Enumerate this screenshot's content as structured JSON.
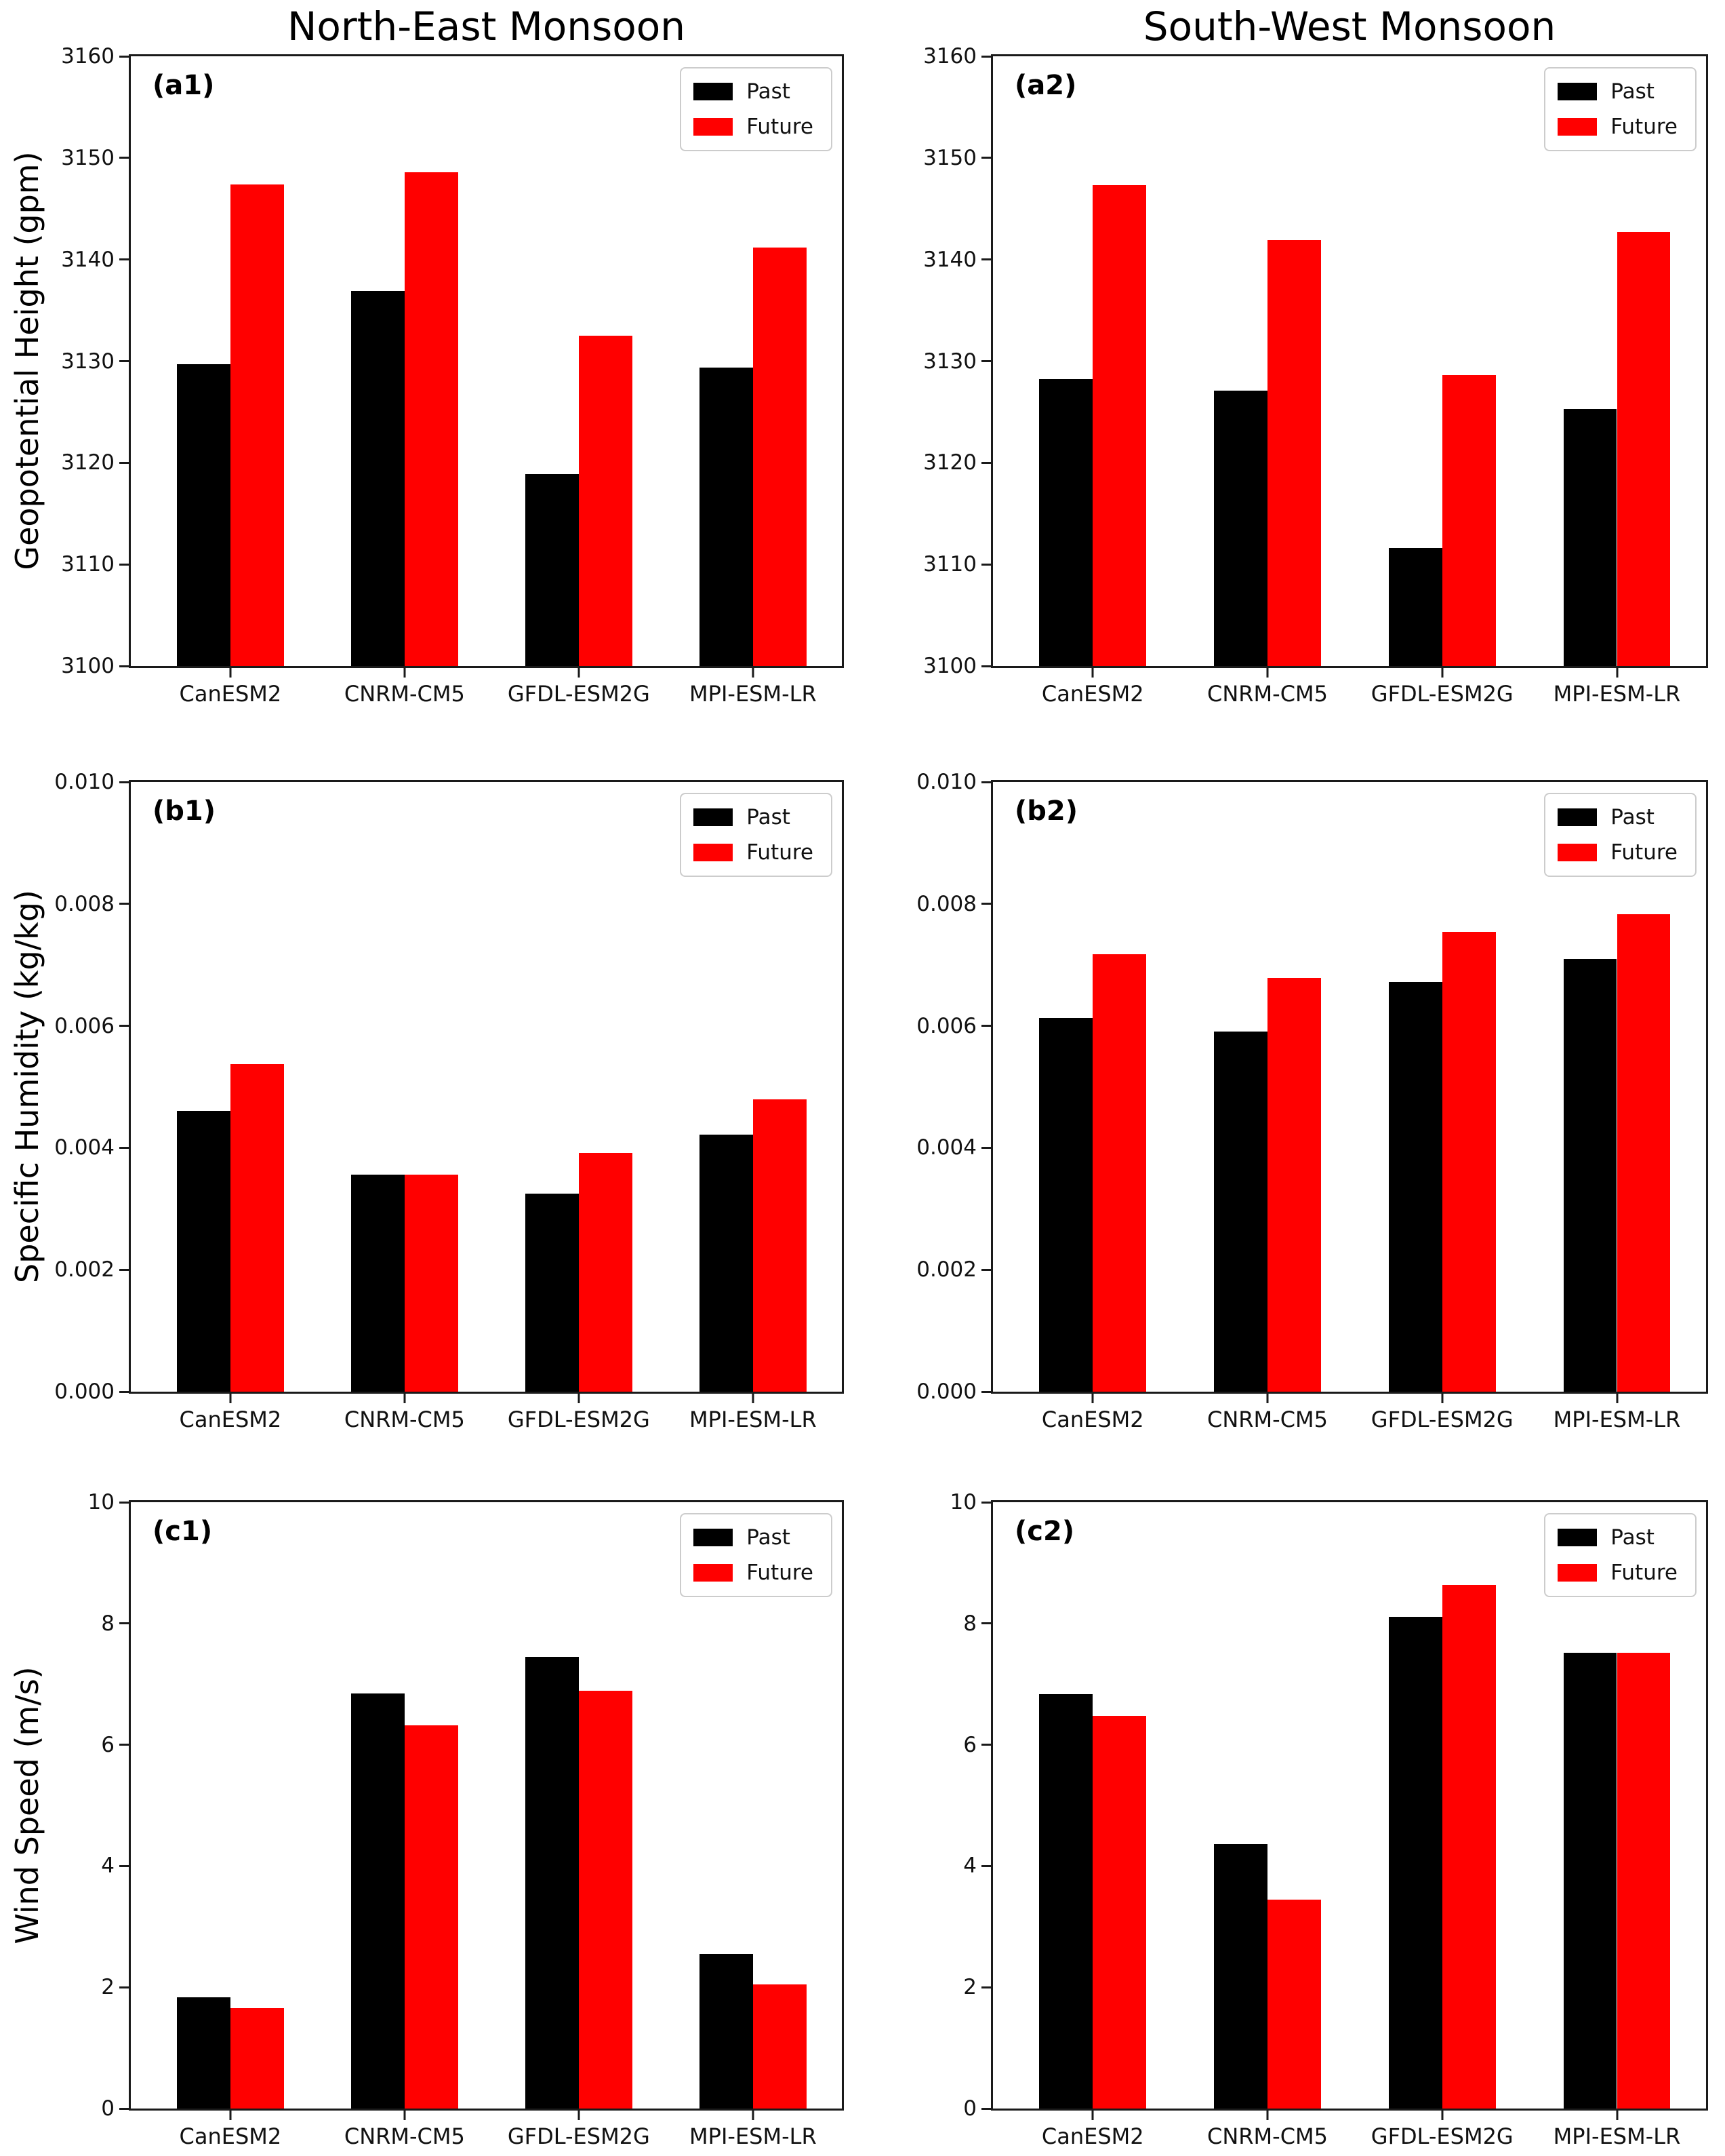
{
  "figure": {
    "columns": [
      {
        "title": "North-East Monsoon"
      },
      {
        "title": "South-West Monsoon"
      }
    ],
    "row_ylabels": [
      "Geopotential Height (gpm)",
      "Specific Humidity (kg/kg)",
      "Wind Speed (m/s)"
    ],
    "colors": {
      "past": "#000000",
      "future": "#ff0000",
      "spine": "#1a1a1a",
      "legend_border": "#cccccc"
    },
    "legend": {
      "past_label": "Past",
      "future_label": "Future",
      "position": "upper right"
    }
  },
  "chart_data": [
    {
      "type": "bar",
      "id": "a1",
      "panel_label": "(a1)",
      "column_title": "North-East Monsoon",
      "ylabel": "Geopotential Height (gpm)",
      "ylim": [
        3100,
        3160
      ],
      "yticks": [
        3100,
        3110,
        3120,
        3130,
        3140,
        3150,
        3160
      ],
      "ytick_labels": [
        "3100",
        "3110",
        "3120",
        "3130",
        "3140",
        "3150",
        "3160"
      ],
      "categories": [
        "CanESM2",
        "CNRM-CM5",
        "GFDL-ESM2G",
        "MPI-ESM-LR"
      ],
      "grid": false,
      "legend_position": "upper right",
      "series": [
        {
          "name": "Past",
          "color_key": "past",
          "values": [
            3129.7,
            3136.9,
            3118.9,
            3129.4
          ]
        },
        {
          "name": "Future",
          "color_key": "future",
          "values": [
            3147.4,
            3148.6,
            3132.5,
            3141.2
          ]
        }
      ]
    },
    {
      "type": "bar",
      "id": "a2",
      "panel_label": "(a2)",
      "column_title": "South-West Monsoon",
      "ylabel": "Geopotential Height (gpm)",
      "ylim": [
        3100,
        3160
      ],
      "yticks": [
        3100,
        3110,
        3120,
        3130,
        3140,
        3150,
        3160
      ],
      "ytick_labels": [
        "3100",
        "3110",
        "3120",
        "3130",
        "3140",
        "3150",
        "3160"
      ],
      "categories": [
        "CanESM2",
        "CNRM-CM5",
        "GFDL-ESM2G",
        "MPI-ESM-LR"
      ],
      "grid": false,
      "legend_position": "upper right",
      "series": [
        {
          "name": "Past",
          "color_key": "past",
          "values": [
            3128.2,
            3127.1,
            3111.6,
            3125.3
          ]
        },
        {
          "name": "Future",
          "color_key": "future",
          "values": [
            3147.3,
            3141.9,
            3128.6,
            3142.7
          ]
        }
      ]
    },
    {
      "type": "bar",
      "id": "b1",
      "panel_label": "(b1)",
      "column_title": "North-East Monsoon",
      "ylabel": "Specific Humidity (kg/kg)",
      "ylim": [
        0.0,
        0.01
      ],
      "yticks": [
        0.0,
        0.002,
        0.004,
        0.006,
        0.008,
        0.01
      ],
      "ytick_labels": [
        "0.000",
        "0.002",
        "0.004",
        "0.006",
        "0.008",
        "0.010"
      ],
      "categories": [
        "CanESM2",
        "CNRM-CM5",
        "GFDL-ESM2G",
        "MPI-ESM-LR"
      ],
      "grid": false,
      "legend_position": "upper right",
      "series": [
        {
          "name": "Past",
          "color_key": "past",
          "values": [
            0.0046,
            0.00356,
            0.00325,
            0.00422
          ]
        },
        {
          "name": "Future",
          "color_key": "future",
          "values": [
            0.00537,
            0.00356,
            0.00392,
            0.00479
          ]
        }
      ]
    },
    {
      "type": "bar",
      "id": "b2",
      "panel_label": "(b2)",
      "column_title": "South-West Monsoon",
      "ylabel": "Specific Humidity (kg/kg)",
      "ylim": [
        0.0,
        0.01
      ],
      "yticks": [
        0.0,
        0.002,
        0.004,
        0.006,
        0.008,
        0.01
      ],
      "ytick_labels": [
        "0.000",
        "0.002",
        "0.004",
        "0.006",
        "0.008",
        "0.010"
      ],
      "categories": [
        "CanESM2",
        "CNRM-CM5",
        "GFDL-ESM2G",
        "MPI-ESM-LR"
      ],
      "grid": false,
      "legend_position": "upper right",
      "series": [
        {
          "name": "Past",
          "color_key": "past",
          "values": [
            0.00613,
            0.00591,
            0.00672,
            0.0071
          ]
        },
        {
          "name": "Future",
          "color_key": "future",
          "values": [
            0.00717,
            0.00678,
            0.00754,
            0.00783
          ]
        }
      ]
    },
    {
      "type": "bar",
      "id": "c1",
      "panel_label": "(c1)",
      "column_title": "North-East Monsoon",
      "ylabel": "Wind Speed (m/s)",
      "ylim": [
        0,
        10
      ],
      "yticks": [
        0,
        2,
        4,
        6,
        8,
        10
      ],
      "ytick_labels": [
        "0",
        "2",
        "4",
        "6",
        "8",
        "10"
      ],
      "categories": [
        "CanESM2",
        "CNRM-CM5",
        "GFDL-ESM2G",
        "MPI-ESM-LR"
      ],
      "grid": false,
      "legend_position": "upper right",
      "series": [
        {
          "name": "Past",
          "color_key": "past",
          "values": [
            1.83,
            6.85,
            7.45,
            2.55
          ]
        },
        {
          "name": "Future",
          "color_key": "future",
          "values": [
            1.66,
            6.32,
            6.89,
            2.05
          ]
        }
      ]
    },
    {
      "type": "bar",
      "id": "c2",
      "panel_label": "(c2)",
      "column_title": "South-West Monsoon",
      "ylabel": "Wind Speed (m/s)",
      "ylim": [
        0,
        10
      ],
      "yticks": [
        0,
        2,
        4,
        6,
        8,
        10
      ],
      "ytick_labels": [
        "0",
        "2",
        "4",
        "6",
        "8",
        "10"
      ],
      "categories": [
        "CanESM2",
        "CNRM-CM5",
        "GFDL-ESM2G",
        "MPI-ESM-LR"
      ],
      "grid": false,
      "legend_position": "upper right",
      "series": [
        {
          "name": "Past",
          "color_key": "past",
          "values": [
            6.83,
            4.36,
            8.11,
            7.52
          ]
        },
        {
          "name": "Future",
          "color_key": "future",
          "values": [
            6.48,
            3.44,
            8.63,
            7.52
          ]
        }
      ]
    }
  ]
}
